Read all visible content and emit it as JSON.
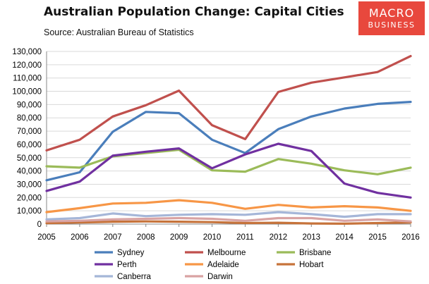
{
  "header": {
    "title": "Australian Population Change: Capital Cities",
    "source": "Source: Australian Bureau of Statistics"
  },
  "logo": {
    "line1": "MACRO",
    "line2": "BUSINESS",
    "color": "#e8483d"
  },
  "chart_data": {
    "type": "line",
    "title": "Australian Population Change: Capital Cities",
    "xlabel": "",
    "ylabel": "",
    "x": [
      "2005",
      "2006",
      "2007",
      "2008",
      "2009",
      "2010",
      "2011",
      "2012",
      "2013",
      "2014",
      "2015",
      "2016"
    ],
    "ylim": [
      0,
      130000
    ],
    "yticks": [
      0,
      10000,
      20000,
      30000,
      40000,
      50000,
      60000,
      70000,
      80000,
      90000,
      100000,
      110000,
      120000,
      130000
    ],
    "ytick_labels": [
      "0",
      "10,000",
      "20,000",
      "30,000",
      "40,000",
      "50,000",
      "60,000",
      "70,000",
      "80,000",
      "90,000",
      "100,000",
      "110,000",
      "120,000",
      "130,000"
    ],
    "grid": true,
    "legend_position": "bottom",
    "series": [
      {
        "name": "Sydney",
        "color": "#4a7ebb",
        "values": [
          33000,
          39000,
          69500,
          84500,
          83500,
          63500,
          53500,
          71500,
          81000,
          87000,
          90500,
          92000
        ]
      },
      {
        "name": "Melbourne",
        "color": "#c0504d",
        "values": [
          55500,
          63500,
          81000,
          89500,
          100500,
          74500,
          64000,
          99500,
          106500,
          110500,
          114500,
          126500
        ]
      },
      {
        "name": "Brisbane",
        "color": "#9bbb59",
        "values": [
          43500,
          42500,
          51000,
          53500,
          56000,
          40500,
          39500,
          49000,
          45500,
          40500,
          37500,
          42500
        ]
      },
      {
        "name": "Perth",
        "color": "#7030a0",
        "values": [
          25000,
          32000,
          51500,
          54500,
          57000,
          42000,
          52500,
          60500,
          55000,
          30500,
          23500,
          20000
        ]
      },
      {
        "name": "Adelaide",
        "color": "#f79646",
        "values": [
          9000,
          12000,
          15500,
          16000,
          18000,
          16000,
          11500,
          14500,
          12500,
          13500,
          12500,
          10000
        ]
      },
      {
        "name": "Hobart",
        "color": "#c6733b",
        "values": [
          700,
          1200,
          1800,
          2000,
          1800,
          1500,
          800,
          1000,
          500,
          300,
          800,
          1200
        ]
      },
      {
        "name": "Canberra",
        "color": "#a5b6d8",
        "values": [
          3500,
          4500,
          8000,
          6000,
          7000,
          7500,
          7000,
          9000,
          7500,
          5500,
          7500,
          7500
        ]
      },
      {
        "name": "Darwin",
        "color": "#d9a3a3",
        "values": [
          2000,
          2500,
          3500,
          4000,
          4500,
          4000,
          2500,
          4500,
          4500,
          2500,
          3500,
          2000
        ]
      }
    ]
  }
}
